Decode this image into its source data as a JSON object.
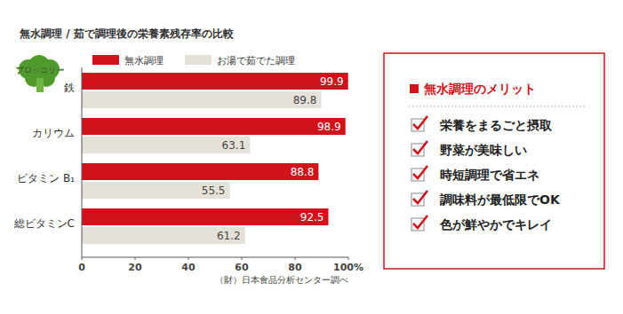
{
  "chart_data": {
    "type": "bar",
    "title": "無水調理 / 茹で調理後の栄養素残存率の比較",
    "orientation": "horizontal",
    "categories": [
      "鉄",
      "カリウム",
      "ビタミン B₁",
      "総ビタミンC"
    ],
    "series": [
      {
        "name": "無水調理",
        "color": "#d2121b",
        "values": [
          99.9,
          98.9,
          88.8,
          92.5
        ]
      },
      {
        "name": "お湯で茹でた調理",
        "color": "#e6e1d8",
        "values": [
          89.8,
          63.1,
          55.5,
          61.2
        ]
      }
    ],
    "xlim": [
      0,
      100
    ],
    "xticks": [
      0,
      20,
      40,
      60,
      80,
      {
        "value": 100,
        "label": "100%"
      }
    ],
    "grid": false,
    "legend": "top",
    "data_labels": true,
    "annotations": [
      "ブロッコリー",
      "（財）日本食品分析センター調べ"
    ]
  },
  "merits": {
    "title": "無水調理のメリット",
    "items": [
      "栄養をまるごと摂取",
      "野菜が美味しい",
      "時短調理で省エネ",
      "調味料が最低限でOK",
      "色が鮮やかでキレイ"
    ]
  }
}
